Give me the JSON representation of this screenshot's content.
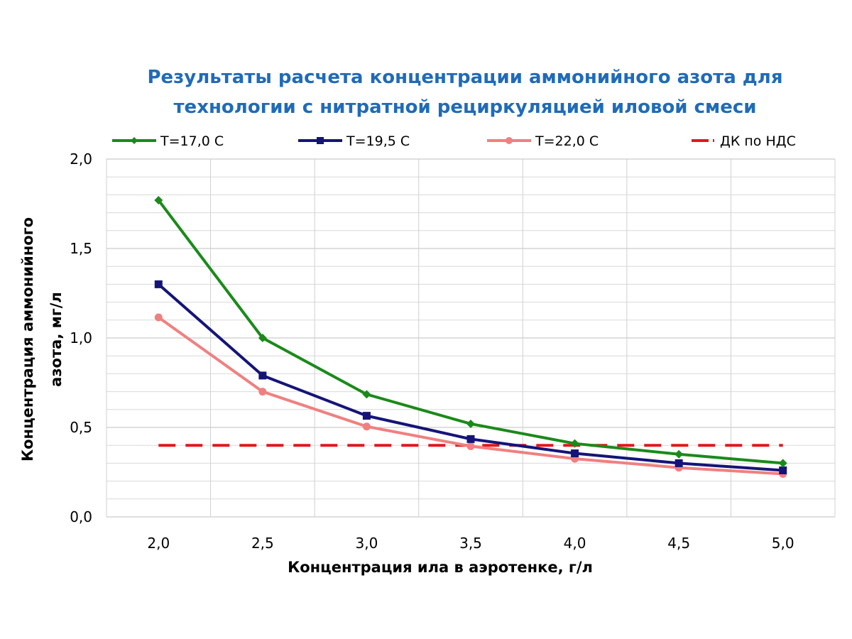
{
  "chart_data": {
    "type": "line",
    "title_line1": "Результаты расчета концентрации аммонийного азота для",
    "title_line2": "технологии с нитратной рециркуляцией иловой смеси",
    "xlabel": "Концентрация ила в аэротенке, г/л",
    "ylabel_line1": "Концентрация аммонийного",
    "ylabel_line2": "азота, мг/л",
    "categories": [
      "2,0",
      "2,5",
      "3,0",
      "3,5",
      "4,0",
      "4,5",
      "5,0"
    ],
    "y_ticks": [
      "0,0",
      "0,5",
      "1,0",
      "1,5",
      "2,0"
    ],
    "ylim": [
      0,
      2
    ],
    "grid": true,
    "legend_position": "top",
    "series": [
      {
        "name": "T=17,0 C",
        "color": "#1a8a1a",
        "marker": "diamond",
        "values": [
          1.77,
          1.0,
          0.685,
          0.52,
          0.41,
          0.35,
          0.3
        ]
      },
      {
        "name": "T=19,5 C",
        "color": "#141478",
        "marker": "square",
        "values": [
          1.3,
          0.79,
          0.565,
          0.435,
          0.355,
          0.3,
          0.26
        ]
      },
      {
        "name": "T=22,0 C",
        "color": "#f08080",
        "marker": "circle",
        "values": [
          1.115,
          0.7,
          0.505,
          0.395,
          0.325,
          0.275,
          0.24
        ]
      },
      {
        "name": "ДК по НДС",
        "color": "#e0181c",
        "marker": "none",
        "dashed": true,
        "values": [
          0.4,
          0.4,
          0.4,
          0.4,
          0.4,
          0.4,
          0.4
        ]
      }
    ]
  }
}
